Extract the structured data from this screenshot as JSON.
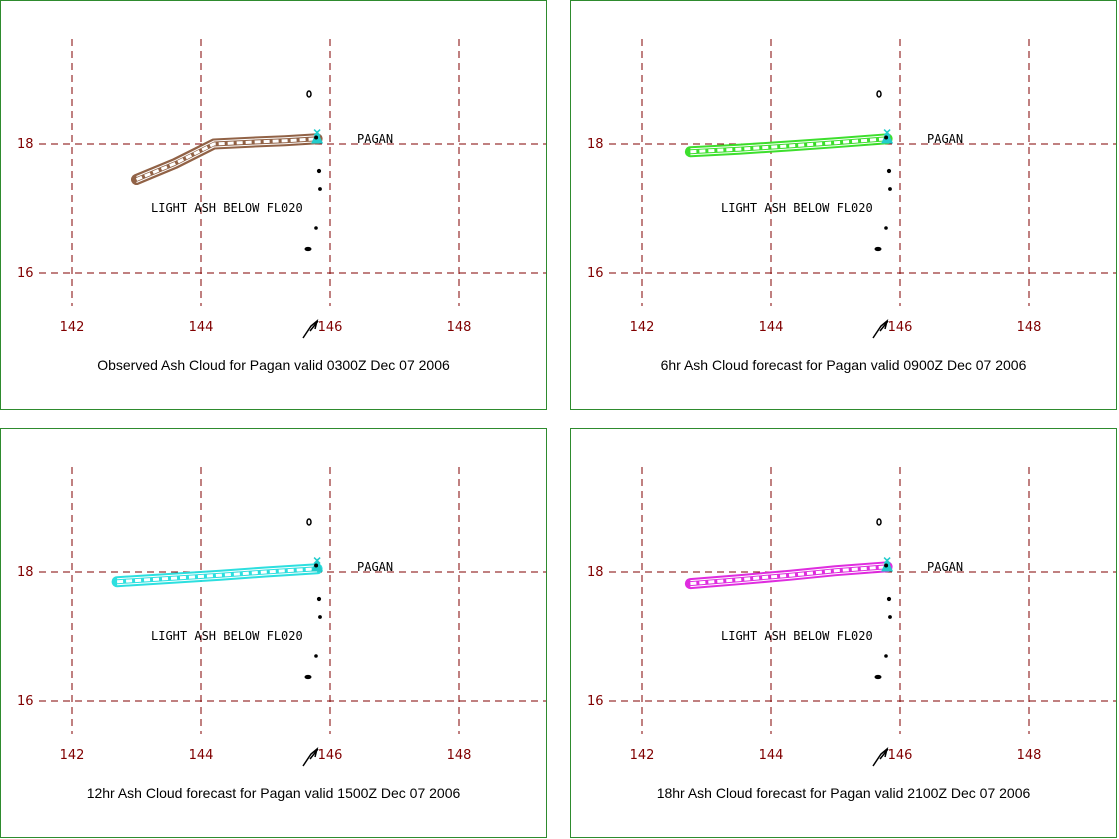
{
  "panels": [
    {
      "caption": "Observed Ash Cloud for Pagan valid 0300Z Dec 07 2006",
      "volcano": "PAGAN",
      "ash_label": "LIGHT ASH BELOW FL020",
      "cloud_color": "#8b5a3c",
      "cloud_path": [
        [
          143.0,
          17.45
        ],
        [
          143.6,
          17.7
        ],
        [
          144.2,
          18.0
        ],
        [
          144.8,
          18.03
        ],
        [
          145.3,
          18.05
        ],
        [
          145.8,
          18.08
        ]
      ],
      "lat_labels": [
        "18",
        "16"
      ],
      "lon_labels": [
        "142",
        "144",
        "146",
        "148"
      ]
    },
    {
      "caption": "6hr Ash Cloud forecast for Pagan valid 0900Z Dec 07 2006",
      "volcano": "PAGAN",
      "ash_label": "LIGHT ASH BELOW FL020",
      "cloud_color": "#33dd22",
      "cloud_path": [
        [
          142.75,
          17.88
        ],
        [
          143.5,
          17.92
        ],
        [
          144.3,
          17.97
        ],
        [
          145.0,
          18.02
        ],
        [
          145.8,
          18.08
        ]
      ],
      "lat_labels": [
        "18",
        "16"
      ],
      "lon_labels": [
        "142",
        "144",
        "146",
        "148"
      ]
    },
    {
      "caption": "12hr Ash Cloud forecast for Pagan valid 1500Z Dec 07 2006",
      "volcano": "PAGAN",
      "ash_label": "LIGHT ASH BELOW FL020",
      "cloud_color": "#22dddd",
      "cloud_path": [
        [
          142.7,
          17.85
        ],
        [
          143.5,
          17.9
        ],
        [
          144.3,
          17.95
        ],
        [
          145.0,
          18.0
        ],
        [
          145.8,
          18.05
        ]
      ],
      "lat_labels": [
        "18",
        "16"
      ],
      "lon_labels": [
        "142",
        "144",
        "146",
        "148"
      ]
    },
    {
      "caption": "18hr Ash Cloud forecast for Pagan valid 2100Z Dec 07 2006",
      "volcano": "PAGAN",
      "ash_label": "LIGHT ASH BELOW FL020",
      "cloud_color": "#dd22dd",
      "cloud_path": [
        [
          142.75,
          17.82
        ],
        [
          143.5,
          17.88
        ],
        [
          144.3,
          17.95
        ],
        [
          145.0,
          18.02
        ],
        [
          145.8,
          18.08
        ]
      ],
      "lat_labels": [
        "18",
        "16"
      ],
      "lon_labels": [
        "142",
        "144",
        "146",
        "148"
      ]
    }
  ],
  "map": {
    "lon_lines": [
      142,
      144,
      146,
      148
    ],
    "lat_lines": [
      16,
      18
    ],
    "volcano_lon": 145.8,
    "volcano_lat": 18.1,
    "grid_color": "#800000",
    "volcano_color": "#22cccc"
  }
}
